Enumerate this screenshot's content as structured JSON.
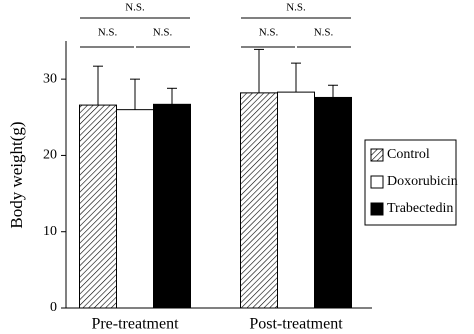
{
  "chart_data": {
    "type": "bar",
    "y_label": "Body weight(g)",
    "categories": [
      "Pre-treatment",
      "Post-treatment"
    ],
    "series": [
      {
        "name": "Control",
        "color": "#000000",
        "hatch": true,
        "values": [
          26.6,
          28.2
        ],
        "errors": [
          5.1,
          5.7
        ]
      },
      {
        "name": "Doxorubicin",
        "color": "#ffffff",
        "hatch": false,
        "values": [
          26.0,
          28.3
        ],
        "errors": [
          4.0,
          3.8
        ]
      },
      {
        "name": "Trabectedin",
        "color": "#000000",
        "hatch": false,
        "values": [
          26.7,
          27.6
        ],
        "errors": [
          2.1,
          1.6
        ]
      }
    ],
    "annotations": [
      "N.S.",
      "N.S.",
      "N.S.",
      "N.S.",
      "N.S.",
      "N.S."
    ],
    "ylim": [
      0,
      35
    ],
    "yticks": [
      0,
      10,
      20,
      30
    ],
    "grid": false
  }
}
